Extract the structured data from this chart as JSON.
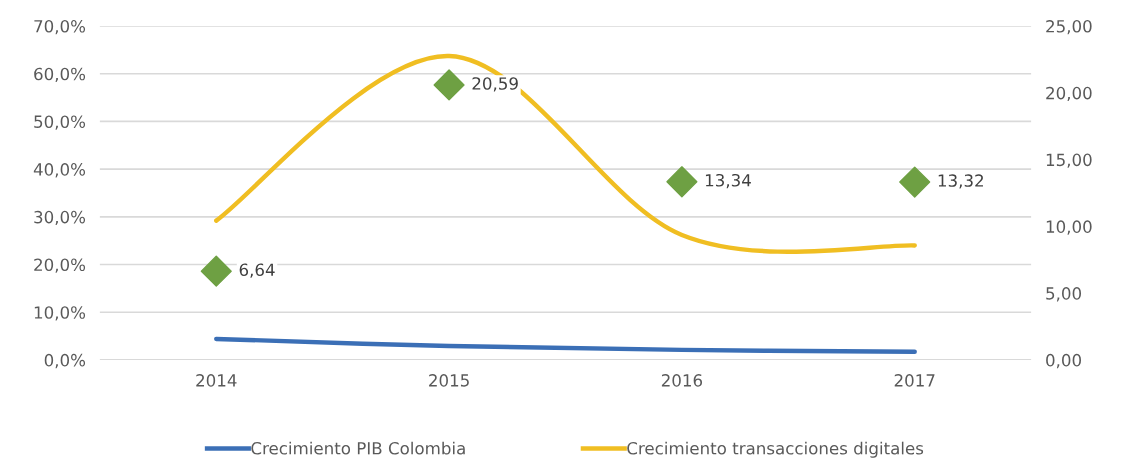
{
  "chart_data": {
    "type": "line",
    "categories": [
      "2014",
      "2015",
      "2016",
      "2017"
    ],
    "series": [
      {
        "name": "Crecimiento PIB Colombia",
        "color": "#3b6fb6",
        "values": [
          4.4,
          2.9,
          2.1,
          1.7
        ]
      },
      {
        "name": "Crecimiento transacciones digitales",
        "color": "#f0be22",
        "values": [
          29.2,
          63.7,
          26.2,
          24.0
        ]
      },
      {
        "type": "scatter",
        "axis": "y2",
        "color": "#6ea043",
        "marker": "diamond",
        "values": [
          6.64,
          20.59,
          13.34,
          13.32
        ],
        "value_labels": [
          "6,64",
          "20,59",
          "13,34",
          "13,32"
        ]
      }
    ],
    "ylim": [
      0,
      70
    ],
    "yticks": [
      {
        "value": 0,
        "label": "0,0%"
      },
      {
        "value": 10,
        "label": "10,0%"
      },
      {
        "value": 20,
        "label": "20,0%"
      },
      {
        "value": 30,
        "label": "30,0%"
      },
      {
        "value": 40,
        "label": "40,0%"
      },
      {
        "value": 50,
        "label": "50,0%"
      },
      {
        "value": 60,
        "label": "60,0%"
      },
      {
        "value": 70,
        "label": "70,0%"
      }
    ],
    "y2lim": [
      0,
      25
    ],
    "y2ticks": [
      {
        "value": 0,
        "label": "0,00"
      },
      {
        "value": 5,
        "label": "5,00"
      },
      {
        "value": 10,
        "label": "10,00"
      },
      {
        "value": 15,
        "label": "15,00"
      },
      {
        "value": 20,
        "label": "20,00"
      },
      {
        "value": 25,
        "label": "25,00"
      }
    ],
    "grid": "y",
    "legend": "bottom"
  }
}
